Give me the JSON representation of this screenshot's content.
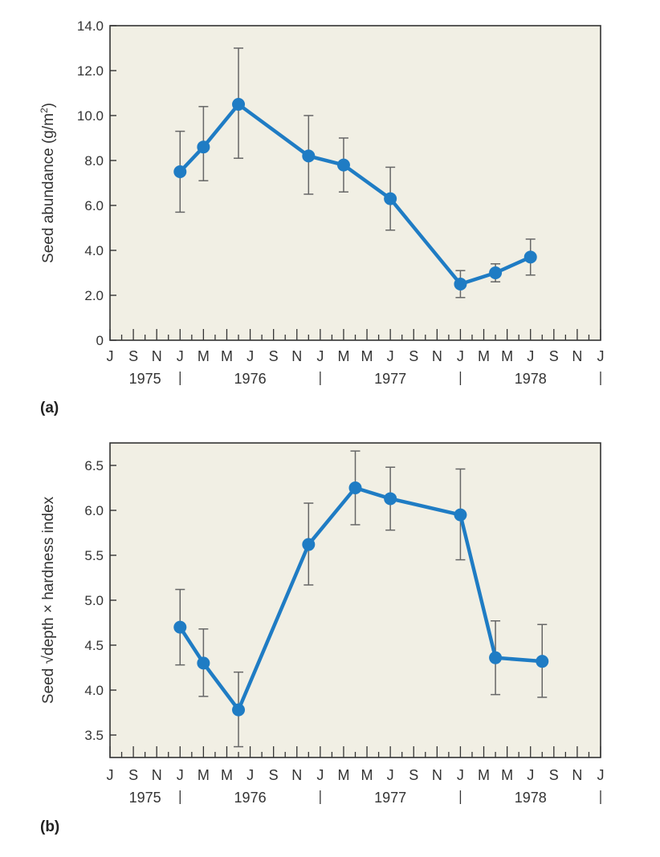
{
  "colors": {
    "plot_background": "#f1efe4",
    "line": "#1f7cc4",
    "axis": "#333333",
    "error_bar": "#666666",
    "text": "#333333"
  },
  "chart_data": [
    {
      "type": "line",
      "panel_label": "(a)",
      "ylabel_text": "Seed abundance (g/m",
      "ylabel_sup": "2",
      "ylabel_close": ")",
      "ylim": [
        0,
        14
      ],
      "yticks": [
        {
          "v": 0,
          "label": "0"
        },
        {
          "v": 2,
          "label": "2.0"
        },
        {
          "v": 4,
          "label": "4.0"
        },
        {
          "v": 6,
          "label": "6.0"
        },
        {
          "v": 8,
          "label": "8.0"
        },
        {
          "v": 10,
          "label": "10.0"
        },
        {
          "v": 12,
          "label": "12.0"
        },
        {
          "v": 14,
          "label": "14.0"
        }
      ],
      "xlim": [
        0,
        42
      ],
      "month_ticks": [
        "J",
        "S",
        "N",
        "J",
        "M",
        "M",
        "J",
        "S",
        "N",
        "J",
        "M",
        "M",
        "J",
        "S",
        "N",
        "J",
        "M",
        "M",
        "J",
        "S",
        "N",
        "J"
      ],
      "month_tick_positions": [
        0,
        2,
        4,
        6,
        8,
        10,
        12,
        14,
        16,
        18,
        20,
        22,
        24,
        26,
        28,
        30,
        32,
        34,
        36,
        38,
        40,
        42
      ],
      "year_labels": [
        {
          "label": "1975",
          "x": 3
        },
        {
          "label": "1976",
          "x": 12
        },
        {
          "label": "1977",
          "x": 24
        },
        {
          "label": "1978",
          "x": 36
        }
      ],
      "year_dividers": [
        6,
        18,
        30,
        42
      ],
      "series": [
        {
          "name": "Seed abundance",
          "x": [
            6,
            8,
            11,
            17,
            20,
            24,
            30,
            33,
            36
          ],
          "y": [
            7.5,
            8.6,
            10.5,
            8.2,
            7.8,
            6.3,
            2.5,
            3.0,
            3.7
          ],
          "err_low": [
            5.7,
            7.1,
            8.1,
            6.5,
            6.6,
            4.9,
            1.9,
            2.6,
            2.9
          ],
          "err_high": [
            9.3,
            10.4,
            13.0,
            10.0,
            9.0,
            7.7,
            3.1,
            3.4,
            4.5
          ]
        }
      ]
    },
    {
      "type": "line",
      "panel_label": "(b)",
      "ylabel_text": "Seed √depth × hardness index",
      "ylim": [
        3.25,
        6.75
      ],
      "yticks": [
        {
          "v": 3.5,
          "label": "3.5"
        },
        {
          "v": 4.0,
          "label": "4.0"
        },
        {
          "v": 4.5,
          "label": "4.5"
        },
        {
          "v": 5.0,
          "label": "5.0"
        },
        {
          "v": 5.5,
          "label": "5.5"
        },
        {
          "v": 6.0,
          "label": "6.0"
        },
        {
          "v": 6.5,
          "label": "6.5"
        }
      ],
      "xlim": [
        0,
        42
      ],
      "month_ticks": [
        "J",
        "S",
        "N",
        "J",
        "M",
        "M",
        "J",
        "S",
        "N",
        "J",
        "M",
        "M",
        "J",
        "S",
        "N",
        "J",
        "M",
        "M",
        "J",
        "S",
        "N",
        "J"
      ],
      "month_tick_positions": [
        0,
        2,
        4,
        6,
        8,
        10,
        12,
        14,
        16,
        18,
        20,
        22,
        24,
        26,
        28,
        30,
        32,
        34,
        36,
        38,
        40,
        42
      ],
      "year_labels": [
        {
          "label": "1975",
          "x": 3
        },
        {
          "label": "1976",
          "x": 12
        },
        {
          "label": "1977",
          "x": 24
        },
        {
          "label": "1978",
          "x": 36
        }
      ],
      "year_dividers": [
        6,
        18,
        30,
        42
      ],
      "series": [
        {
          "name": "Seed depth-hardness index",
          "x": [
            6,
            8,
            11,
            17,
            21,
            24,
            30,
            33,
            37
          ],
          "y": [
            4.7,
            4.3,
            3.78,
            5.62,
            6.25,
            6.13,
            5.95,
            4.36,
            4.32
          ],
          "err_low": [
            4.28,
            3.93,
            3.37,
            5.17,
            5.84,
            5.78,
            5.45,
            3.95,
            3.92
          ],
          "err_high": [
            5.12,
            4.68,
            4.2,
            6.08,
            6.66,
            6.48,
            6.46,
            4.77,
            4.73
          ]
        }
      ]
    }
  ]
}
